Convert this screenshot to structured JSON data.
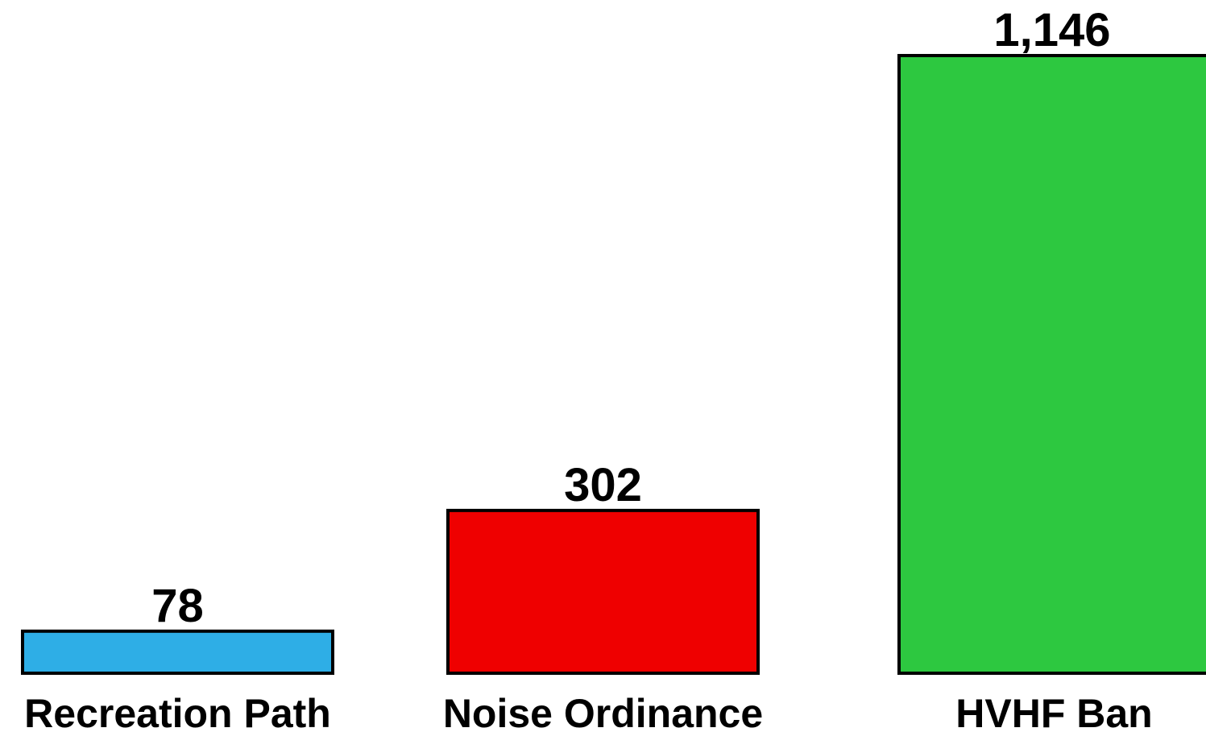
{
  "chart_data": {
    "type": "bar",
    "categories": [
      "Recreation Path",
      "Noise Ordinance",
      "HVHF Ban"
    ],
    "values": [
      78,
      302,
      1146
    ],
    "value_labels": [
      "78",
      "302",
      "1,146"
    ],
    "colors": [
      "#2eaee6",
      "#ef0000",
      "#2dc840"
    ]
  }
}
